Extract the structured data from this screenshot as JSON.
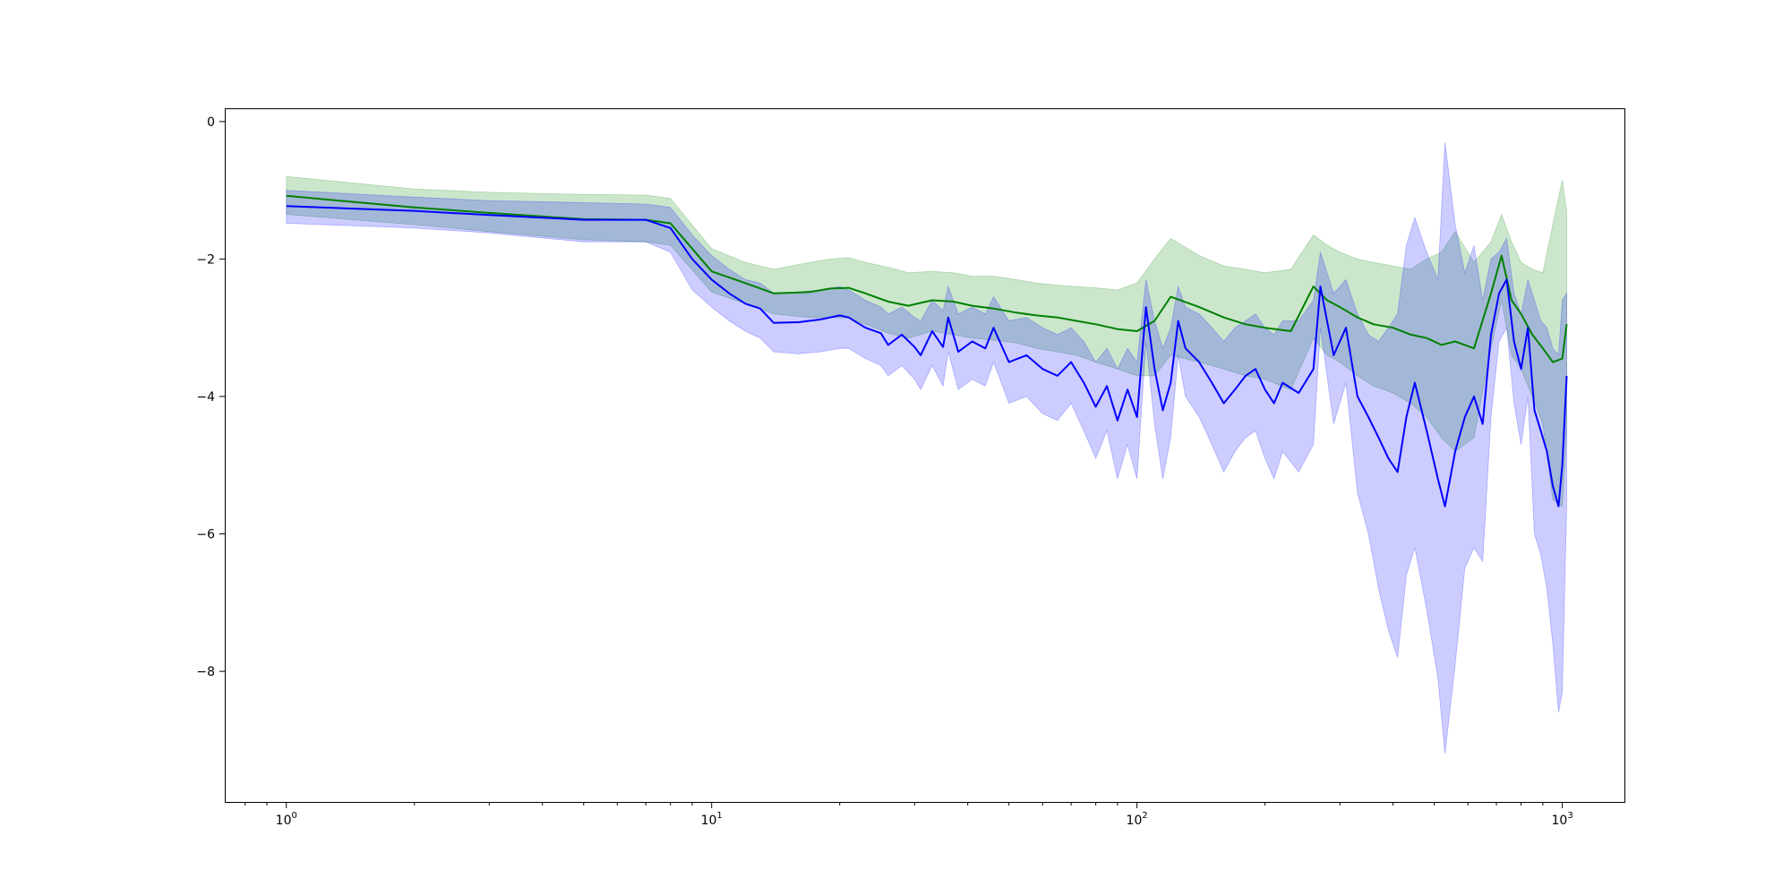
{
  "chart_data": {
    "type": "line",
    "title": "",
    "xlabel": "",
    "ylabel": "",
    "xscale": "log",
    "xlim": [
      0.72,
      1400
    ],
    "ylim": [
      -9.9,
      0.18
    ],
    "grid": false,
    "legend": "none",
    "x_ticks": [
      1,
      10,
      100,
      1000
    ],
    "x_tick_labels": [
      {
        "base": "10",
        "exp": "0"
      },
      {
        "base": "10",
        "exp": "1"
      },
      {
        "base": "10",
        "exp": "2"
      },
      {
        "base": "10",
        "exp": "3"
      }
    ],
    "y_ticks": [
      0,
      -2,
      -4,
      -6,
      -8
    ],
    "y_tick_labels": [
      "0",
      "−2",
      "−4",
      "−6",
      "−8"
    ],
    "series": [
      {
        "color": "#008000",
        "band_color": "#008000",
        "band_opacity": 0.2,
        "x": [
          1,
          2,
          3,
          5,
          7,
          8,
          10,
          12,
          14,
          17,
          19,
          21,
          23,
          26,
          29,
          33,
          37,
          41,
          46,
          52,
          58,
          65,
          72,
          80,
          90,
          100,
          110,
          120,
          140,
          160,
          180,
          200,
          230,
          260,
          280,
          300,
          330,
          360,
          400,
          440,
          480,
          520,
          560,
          620,
          680,
          720,
          760,
          800,
          850,
          900,
          950,
          1000,
          1024
        ],
        "values": [
          -1.08,
          -1.25,
          -1.33,
          -1.42,
          -1.43,
          -1.48,
          -2.18,
          -2.35,
          -2.5,
          -2.48,
          -2.43,
          -2.42,
          -2.5,
          -2.62,
          -2.68,
          -2.6,
          -2.62,
          -2.68,
          -2.72,
          -2.78,
          -2.82,
          -2.85,
          -2.9,
          -2.95,
          -3.02,
          -3.05,
          -2.9,
          -2.55,
          -2.7,
          -2.85,
          -2.95,
          -3.0,
          -3.05,
          -2.4,
          -2.6,
          -2.7,
          -2.85,
          -2.95,
          -3.0,
          -3.1,
          -3.15,
          -3.25,
          -3.2,
          -3.3,
          -2.5,
          -1.95,
          -2.6,
          -2.8,
          -3.1,
          -3.3,
          -3.5,
          -3.45,
          -2.95
        ],
        "upper": [
          -0.8,
          -0.98,
          -1.03,
          -1.06,
          -1.07,
          -1.12,
          -1.85,
          -2.05,
          -2.15,
          -2.05,
          -2.0,
          -1.98,
          -2.05,
          -2.12,
          -2.2,
          -2.18,
          -2.2,
          -2.25,
          -2.25,
          -2.3,
          -2.35,
          -2.38,
          -2.4,
          -2.42,
          -2.45,
          -2.35,
          -2.0,
          -1.7,
          -1.95,
          -2.1,
          -2.15,
          -2.2,
          -2.15,
          -1.65,
          -1.8,
          -1.9,
          -2.0,
          -2.05,
          -2.1,
          -2.15,
          -2.0,
          -1.9,
          -1.6,
          -2.05,
          -1.75,
          -1.35,
          -1.75,
          -2.05,
          -2.15,
          -2.2,
          -1.5,
          -0.85,
          -1.3
        ],
        "lower": [
          -1.35,
          -1.5,
          -1.6,
          -1.72,
          -1.75,
          -1.8,
          -2.48,
          -2.65,
          -2.8,
          -2.85,
          -2.85,
          -2.86,
          -2.95,
          -3.08,
          -3.15,
          -3.05,
          -3.1,
          -3.15,
          -3.18,
          -3.22,
          -3.3,
          -3.35,
          -3.4,
          -3.5,
          -3.6,
          -3.7,
          -3.7,
          -3.4,
          -3.5,
          -3.6,
          -3.7,
          -3.75,
          -3.9,
          -3.15,
          -3.4,
          -3.5,
          -3.7,
          -3.85,
          -3.95,
          -4.1,
          -4.3,
          -4.6,
          -4.8,
          -4.6,
          -3.3,
          -2.6,
          -3.4,
          -3.6,
          -4.0,
          -4.4,
          -5.5,
          -5.6,
          -4.5
        ]
      },
      {
        "color": "#0000ff",
        "band_color": "#0000ff",
        "band_opacity": 0.2,
        "x": [
          1,
          2,
          3,
          5,
          7,
          8,
          9,
          10,
          11,
          12,
          13,
          14,
          16,
          18,
          20,
          21,
          23,
          25,
          26,
          28,
          30,
          31,
          33,
          35,
          36,
          38,
          41,
          44,
          46,
          50,
          55,
          60,
          65,
          70,
          75,
          80,
          85,
          90,
          95,
          100,
          105,
          110,
          115,
          120,
          125,
          130,
          140,
          150,
          160,
          170,
          180,
          190,
          200,
          210,
          220,
          240,
          260,
          270,
          290,
          310,
          330,
          350,
          370,
          390,
          410,
          430,
          450,
          480,
          510,
          530,
          560,
          590,
          620,
          650,
          680,
          710,
          740,
          770,
          800,
          830,
          860,
          890,
          920,
          950,
          980,
          1000,
          1024
        ],
        "values": [
          -1.23,
          -1.3,
          -1.36,
          -1.43,
          -1.43,
          -1.55,
          -2.0,
          -2.3,
          -2.5,
          -2.65,
          -2.72,
          -2.93,
          -2.92,
          -2.88,
          -2.82,
          -2.85,
          -3.0,
          -3.08,
          -3.25,
          -3.1,
          -3.28,
          -3.4,
          -3.05,
          -3.28,
          -2.85,
          -3.35,
          -3.2,
          -3.3,
          -3.0,
          -3.5,
          -3.4,
          -3.6,
          -3.7,
          -3.5,
          -3.8,
          -4.15,
          -3.85,
          -4.35,
          -3.9,
          -4.3,
          -2.7,
          -3.6,
          -4.2,
          -3.8,
          -2.9,
          -3.3,
          -3.5,
          -3.8,
          -4.1,
          -3.9,
          -3.7,
          -3.6,
          -3.9,
          -4.1,
          -3.8,
          -3.95,
          -3.6,
          -2.4,
          -3.4,
          -3.0,
          -4.0,
          -4.3,
          -4.6,
          -4.9,
          -5.1,
          -4.3,
          -3.8,
          -4.5,
          -5.2,
          -5.6,
          -4.8,
          -4.3,
          -4.0,
          -4.4,
          -3.1,
          -2.5,
          -2.3,
          -3.2,
          -3.6,
          -3.0,
          -4.2,
          -4.5,
          -4.8,
          -5.3,
          -5.6,
          -5.0,
          -3.7
        ],
        "upper": [
          -1.0,
          -1.1,
          -1.15,
          -1.18,
          -1.2,
          -1.25,
          -1.65,
          -1.95,
          -2.15,
          -2.3,
          -2.35,
          -2.5,
          -2.48,
          -2.45,
          -2.4,
          -2.45,
          -2.6,
          -2.7,
          -2.8,
          -2.7,
          -2.85,
          -2.9,
          -2.6,
          -2.75,
          -2.4,
          -2.8,
          -2.7,
          -2.8,
          -2.55,
          -2.9,
          -2.85,
          -3.0,
          -3.1,
          -3.0,
          -3.2,
          -3.5,
          -3.3,
          -3.6,
          -3.3,
          -3.5,
          -2.3,
          -2.9,
          -3.3,
          -3.0,
          -2.4,
          -2.7,
          -2.8,
          -3.0,
          -3.2,
          -3.0,
          -2.9,
          -2.8,
          -3.0,
          -3.1,
          -2.9,
          -2.9,
          -2.6,
          -1.9,
          -2.5,
          -2.3,
          -2.8,
          -3.1,
          -3.2,
          -3.0,
          -2.8,
          -1.8,
          -1.4,
          -1.9,
          -2.3,
          -0.3,
          -1.5,
          -2.2,
          -1.8,
          -2.6,
          -2.0,
          -1.9,
          -1.7,
          -2.5,
          -2.8,
          -2.3,
          -2.6,
          -2.9,
          -3.0,
          -3.3,
          -3.4,
          -2.6,
          -2.5
        ],
        "lower": [
          -1.48,
          -1.55,
          -1.62,
          -1.75,
          -1.75,
          -1.9,
          -2.45,
          -2.7,
          -2.9,
          -3.05,
          -3.15,
          -3.35,
          -3.38,
          -3.35,
          -3.3,
          -3.3,
          -3.45,
          -3.55,
          -3.7,
          -3.55,
          -3.75,
          -3.9,
          -3.55,
          -3.85,
          -3.35,
          -3.9,
          -3.75,
          -3.85,
          -3.5,
          -4.1,
          -4.0,
          -4.25,
          -4.35,
          -4.1,
          -4.5,
          -4.9,
          -4.5,
          -5.2,
          -4.7,
          -5.2,
          -3.2,
          -4.4,
          -5.2,
          -4.6,
          -3.4,
          -4.0,
          -4.3,
          -4.7,
          -5.1,
          -4.8,
          -4.6,
          -4.5,
          -4.9,
          -5.2,
          -4.8,
          -5.1,
          -4.7,
          -3.0,
          -4.4,
          -3.8,
          -5.4,
          -6.0,
          -6.8,
          -7.4,
          -7.8,
          -6.6,
          -6.2,
          -7.1,
          -8.1,
          -9.2,
          -7.9,
          -6.5,
          -6.2,
          -6.4,
          -4.3,
          -3.2,
          -3.0,
          -4.1,
          -4.7,
          -4.0,
          -6.0,
          -6.3,
          -6.8,
          -7.6,
          -8.6,
          -8.3,
          -5.6
        ]
      }
    ]
  }
}
